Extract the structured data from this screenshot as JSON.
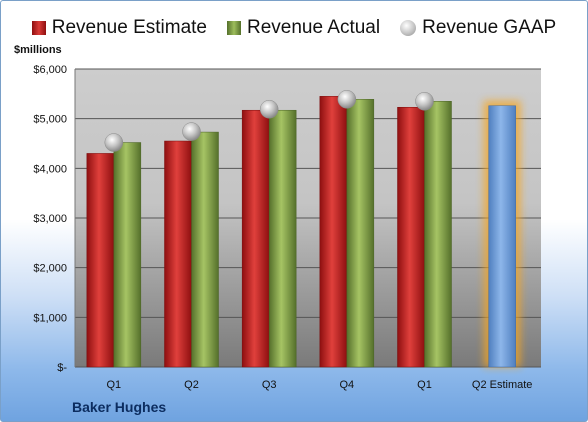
{
  "chart_data": {
    "type": "bar",
    "categories": [
      "Q1",
      "Q2",
      "Q3",
      "Q4",
      "Q1",
      "Q2 Estimate"
    ],
    "series": [
      {
        "name": "Revenue Estimate",
        "kind": "bar",
        "color": "#c8201d",
        "values": [
          4300,
          4550,
          5170,
          5450,
          5230,
          null
        ]
      },
      {
        "name": "Revenue Actual",
        "kind": "bar",
        "color": "#8aab4a",
        "values": [
          4520,
          4730,
          5170,
          5390,
          5350,
          null
        ]
      },
      {
        "name": "Revenue GAAP",
        "kind": "marker",
        "color": "#b8b8b8",
        "values": [
          4520,
          4740,
          5190,
          5390,
          5350,
          null
        ]
      }
    ],
    "projection": {
      "category": "Q2 Estimate",
      "value": 5260,
      "color": "#6f9fd8",
      "glow_color": "#f5a623"
    },
    "ylabel": "$millions",
    "ylim": [
      0,
      6000
    ],
    "yticks": [
      0,
      1000,
      2000,
      3000,
      4000,
      5000,
      6000
    ],
    "ytick_labels": [
      "$-",
      "$1,000",
      "$2,000",
      "$3,000",
      "$4,000",
      "$5,000",
      "$6,000"
    ],
    "legend_position": "top",
    "grid": true
  },
  "footer": {
    "company": "Baker Hughes"
  }
}
